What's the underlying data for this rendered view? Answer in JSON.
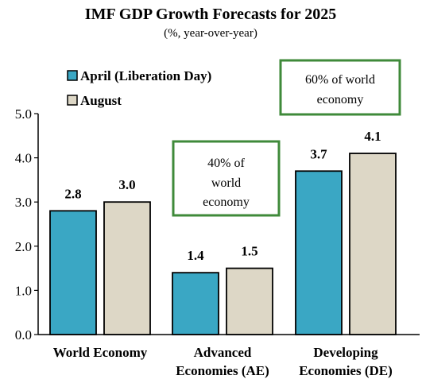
{
  "chart_data": {
    "type": "bar",
    "title": "IMF GDP Growth Forecasts for 2025",
    "subtitle": "(%, year-over-year)",
    "categories": [
      [
        "World Economy"
      ],
      [
        "Advanced",
        "Economies (AE)"
      ],
      [
        "Developing",
        "Economies (DE)"
      ]
    ],
    "series": [
      {
        "name": "April (Liberation Day)",
        "color": "#3aa7c4",
        "values": [
          2.8,
          1.4,
          3.7
        ],
        "labels": [
          "2.8",
          "1.4",
          "3.7"
        ]
      },
      {
        "name": "August",
        "color": "#ddd7c6",
        "values": [
          3.0,
          1.5,
          4.1
        ],
        "labels": [
          "3.0",
          "1.5",
          "4.1"
        ]
      }
    ],
    "ylim": [
      0,
      5
    ],
    "yticks": [
      "0.0",
      "1.0",
      "2.0",
      "3.0",
      "4.0",
      "5.0"
    ],
    "grid": false,
    "legend": "top-left",
    "annotations": [
      {
        "lines": [
          "40% of",
          "world",
          "economy"
        ],
        "border_color": "#3f8a3a"
      },
      {
        "lines": [
          "60% of world",
          "economy"
        ],
        "border_color": "#3f8a3a"
      }
    ]
  }
}
